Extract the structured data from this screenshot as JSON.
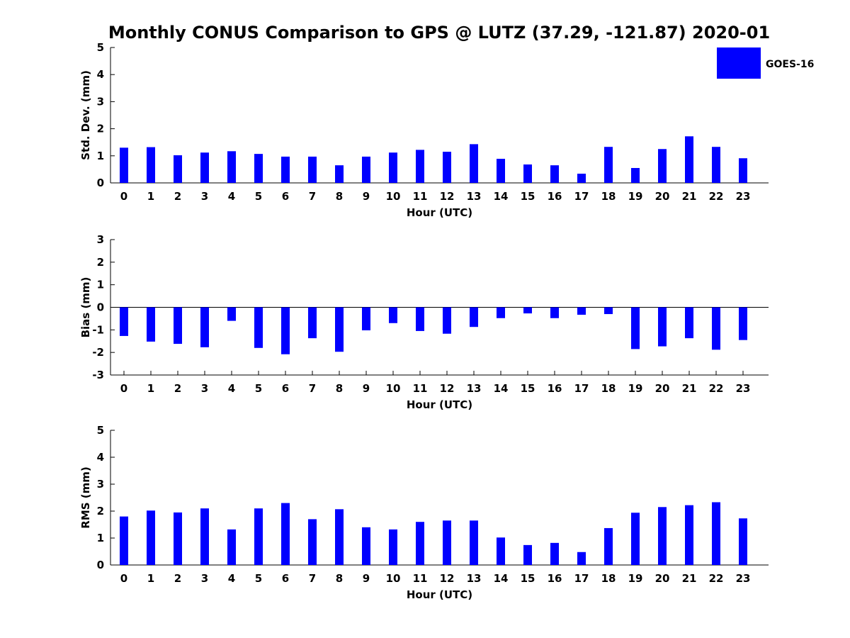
{
  "title": "Monthly CONUS Comparison to GPS @ LUTZ (37.29, -121.87) 2020-01",
  "colors": {
    "bar": "#0000ff"
  },
  "legend": {
    "label": "GOES-16",
    "placement": "top-right"
  },
  "chart_data": [
    {
      "type": "bar",
      "ylabel": "Std. Dev. (mm)",
      "xlabel": "Hour (UTC)",
      "ylim": [
        0,
        5
      ],
      "yticks": [
        0,
        1,
        2,
        3,
        4,
        5
      ],
      "categories": [
        "0",
        "1",
        "2",
        "3",
        "4",
        "5",
        "6",
        "7",
        "8",
        "9",
        "10",
        "11",
        "12",
        "13",
        "14",
        "15",
        "16",
        "17",
        "18",
        "19",
        "20",
        "21",
        "22",
        "23"
      ],
      "series": [
        {
          "name": "GOES-16",
          "values": [
            1.3,
            1.32,
            1.02,
            1.12,
            1.17,
            1.07,
            0.97,
            0.97,
            0.65,
            0.97,
            1.12,
            1.22,
            1.15,
            1.43,
            0.89,
            0.68,
            0.65,
            0.34,
            1.33,
            0.55,
            1.25,
            1.72,
            1.33,
            0.91
          ]
        }
      ]
    },
    {
      "type": "bar",
      "ylabel": "Bias (mm)",
      "xlabel": "Hour (UTC)",
      "ylim": [
        -3,
        3
      ],
      "yticks": [
        -3,
        -2,
        -1,
        0,
        1,
        2,
        3
      ],
      "categories": [
        "0",
        "1",
        "2",
        "3",
        "4",
        "5",
        "6",
        "7",
        "8",
        "9",
        "10",
        "11",
        "12",
        "13",
        "14",
        "15",
        "16",
        "17",
        "18",
        "19",
        "20",
        "21",
        "22",
        "23"
      ],
      "series": [
        {
          "name": "GOES-16",
          "values": [
            -1.27,
            -1.52,
            -1.62,
            -1.77,
            -0.6,
            -1.8,
            -2.08,
            -1.37,
            -1.97,
            -1.02,
            -0.7,
            -1.05,
            -1.17,
            -0.87,
            -0.48,
            -0.27,
            -0.48,
            -0.33,
            -0.3,
            -1.85,
            -1.73,
            -1.37,
            -1.88,
            -1.45
          ]
        }
      ]
    },
    {
      "type": "bar",
      "ylabel": "RMS (mm)",
      "xlabel": "Hour (UTC)",
      "ylim": [
        0,
        5
      ],
      "yticks": [
        0,
        1,
        2,
        3,
        4,
        5
      ],
      "categories": [
        "0",
        "1",
        "2",
        "3",
        "4",
        "5",
        "6",
        "7",
        "8",
        "9",
        "10",
        "11",
        "12",
        "13",
        "14",
        "15",
        "16",
        "17",
        "18",
        "19",
        "20",
        "21",
        "22",
        "23"
      ],
      "series": [
        {
          "name": "GOES-16",
          "values": [
            1.8,
            2.02,
            1.95,
            2.1,
            1.32,
            2.1,
            2.3,
            1.7,
            2.07,
            1.4,
            1.32,
            1.6,
            1.65,
            1.65,
            1.02,
            0.74,
            0.82,
            0.48,
            1.37,
            1.94,
            2.15,
            2.22,
            2.33,
            1.73
          ]
        }
      ]
    }
  ]
}
